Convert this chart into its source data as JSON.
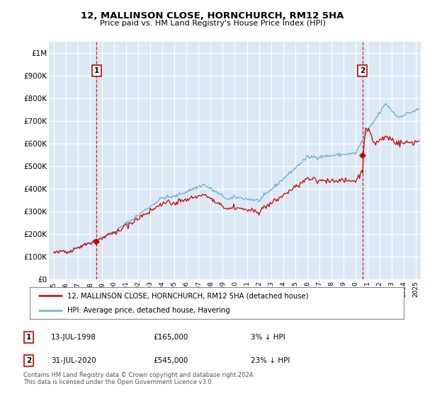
{
  "title": "12, MALLINSON CLOSE, HORNCHURCH, RM12 5HA",
  "subtitle": "Price paid vs. HM Land Registry's House Price Index (HPI)",
  "ylim": [
    0,
    1050000
  ],
  "yticks": [
    0,
    100000,
    200000,
    300000,
    400000,
    500000,
    600000,
    700000,
    800000,
    900000,
    1000000
  ],
  "ytick_labels": [
    "£0",
    "£100K",
    "£200K",
    "£300K",
    "£400K",
    "£500K",
    "£600K",
    "£700K",
    "£800K",
    "£900K",
    "£1M"
  ],
  "background_color": "#ffffff",
  "plot_bg_color": "#dce9f5",
  "grid_color": "#ffffff",
  "hpi_color": "#6aaed6",
  "price_color": "#cc0000",
  "sale1_x": 1998.54,
  "sale1_y": 165000,
  "sale2_x": 2020.58,
  "sale2_y": 545000,
  "legend_line1": "12, MALLINSON CLOSE, HORNCHURCH, RM12 5HA (detached house)",
  "legend_line2": "HPI: Average price, detached house, Havering",
  "annotation1_date": "13-JUL-1998",
  "annotation1_price": "£165,000",
  "annotation1_hpi": "3% ↓ HPI",
  "annotation2_date": "31-JUL-2020",
  "annotation2_price": "£545,000",
  "annotation2_hpi": "23% ↓ HPI",
  "footer": "Contains HM Land Registry data © Crown copyright and database right 2024.\nThis data is licensed under the Open Government Licence v3.0.",
  "xlim_left": 1994.6,
  "xlim_right": 2025.4
}
